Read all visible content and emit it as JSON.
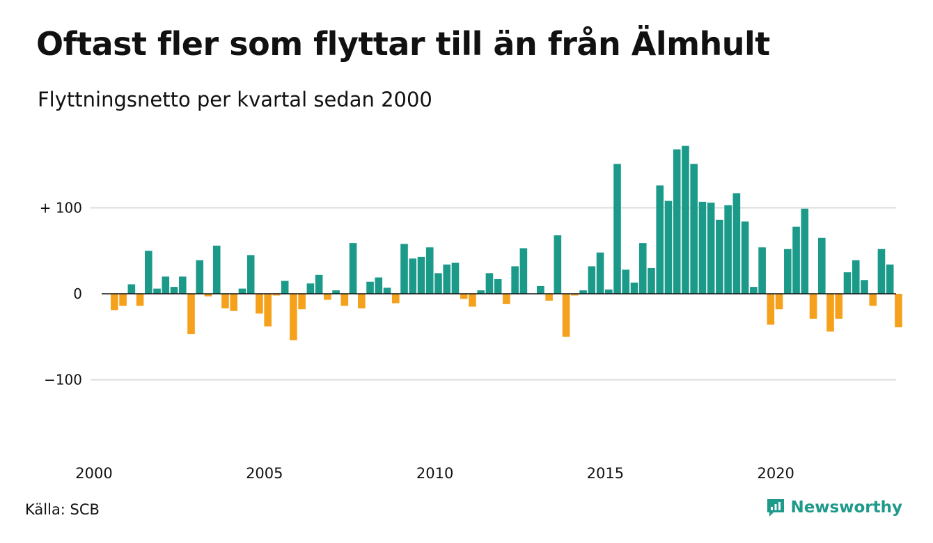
{
  "title": "Oftast fler som flyttar till än från Älmhult",
  "subtitle": "Flyttningsnetto per kvartal sedan 2000",
  "source": "Källa: SCB",
  "brand": {
    "name": "Newsworthy",
    "icon": "newsworthy-logo-icon"
  },
  "colors": {
    "positive": "#1b9a8a",
    "negative": "#f5a11c",
    "grid": "#dddddd",
    "brand": "#1f9a8a"
  },
  "chart_data": {
    "type": "bar",
    "ylim": [
      -185,
      185
    ],
    "grid": true,
    "y_ticks": [
      {
        "value": 100,
        "label": "+ 100"
      },
      {
        "value": 0,
        "label": "0"
      },
      {
        "value": -100,
        "label": "−100"
      }
    ],
    "x_ticks": [
      {
        "index": 0,
        "label": "2000"
      },
      {
        "index": 20,
        "label": "2005"
      },
      {
        "index": 40,
        "label": "2010"
      },
      {
        "index": 60,
        "label": "2015"
      },
      {
        "index": 80,
        "label": "2020"
      }
    ],
    "quarters_start": "2000 Q1",
    "values": [
      0,
      -19,
      -14,
      11,
      -14,
      50,
      6,
      20,
      8,
      20,
      -47,
      39,
      -3,
      56,
      -17,
      -20,
      6,
      45,
      -23,
      -38,
      -2,
      15,
      -54,
      -18,
      12,
      22,
      -7,
      4,
      -14,
      59,
      -17,
      14,
      19,
      7,
      -11,
      58,
      41,
      43,
      54,
      24,
      34,
      36,
      -6,
      -15,
      4,
      24,
      17,
      -12,
      32,
      53,
      0,
      9,
      -8,
      68,
      -50,
      -2,
      4,
      32,
      48,
      5,
      151,
      28,
      13,
      59,
      30,
      126,
      108,
      168,
      172,
      151,
      107,
      106,
      86,
      103,
      117,
      84,
      8,
      54,
      -36,
      -18,
      52,
      78,
      99,
      -29,
      65,
      -44,
      -29,
      25,
      39,
      16,
      -14,
      52,
      34,
      -39
    ]
  }
}
